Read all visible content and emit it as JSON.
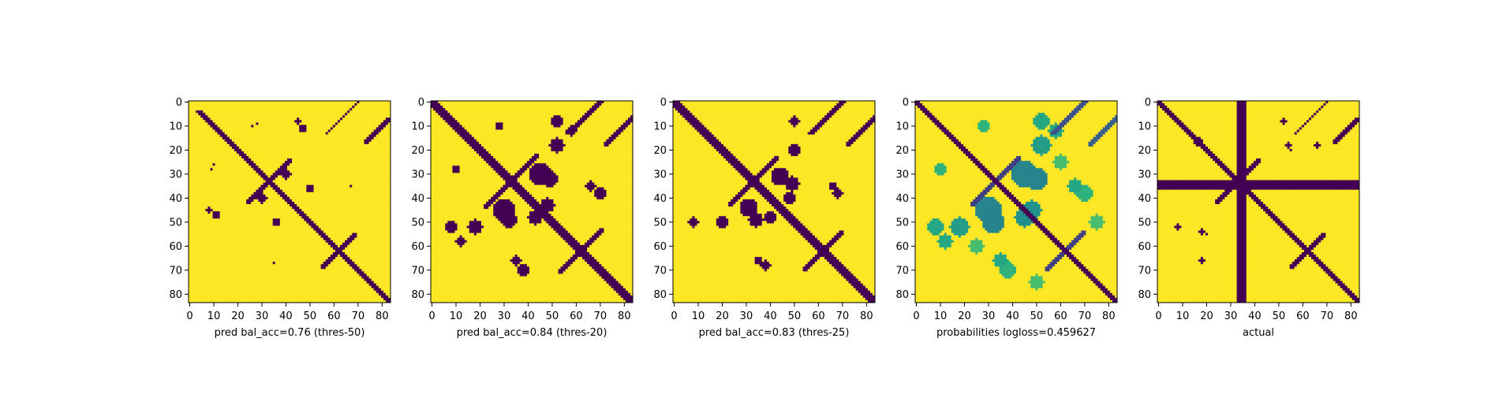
{
  "colors": {
    "low": "#440154",
    "high": "#fde725",
    "background": "#ffffff"
  },
  "chart_data": [
    {
      "type": "heatmap",
      "label": "pred bal_acc=0.76 (thres-50)",
      "matrix_size": 84,
      "xticks": [
        0,
        10,
        20,
        30,
        40,
        50,
        60,
        70,
        80
      ],
      "yticks": [
        0,
        10,
        20,
        30,
        40,
        50,
        60,
        70,
        80
      ],
      "colormap": "viridis",
      "value_range": [
        0,
        1
      ],
      "features": [
        {
          "kind": "diagonal",
          "from": 4,
          "to": 83,
          "width": 1.6,
          "value": 0
        },
        {
          "kind": "antidiagonal",
          "center": [
            33,
            33
          ],
          "half_length": 9,
          "width": 1.2,
          "value": 0
        },
        {
          "kind": "antidiagonal",
          "center": [
            62,
            62
          ],
          "half_length": 7,
          "width": 1.2,
          "value": 0
        },
        {
          "kind": "antidiagonal",
          "center": [
            12,
            78
          ],
          "half_length": 5,
          "width": 1.0,
          "value": 0
        },
        {
          "kind": "offset_diagonal",
          "offset": 70,
          "from": 0,
          "to": 13,
          "width": 0.8,
          "value": 0
        },
        {
          "kind": "blob",
          "center": [
            40,
            30
          ],
          "radius": 2.0,
          "value": 0
        },
        {
          "kind": "blob",
          "center": [
            47,
            11
          ],
          "radius": 1.5,
          "value": 0
        },
        {
          "kind": "blob",
          "center": [
            50,
            36
          ],
          "radius": 1.5,
          "value": 0
        },
        {
          "kind": "blob",
          "center": [
            8,
            45
          ],
          "radius": 1.0,
          "value": 0
        },
        {
          "kind": "blob",
          "center": [
            9,
            28
          ],
          "radius": 0.8,
          "value": 0
        },
        {
          "kind": "blob",
          "center": [
            26,
            10
          ],
          "radius": 0.8,
          "value": 0
        },
        {
          "kind": "blob",
          "center": [
            67,
            35
          ],
          "radius": 0.8,
          "value": 0
        }
      ]
    },
    {
      "type": "heatmap",
      "label": "pred bal_acc=0.84 (thres-20)",
      "matrix_size": 84,
      "xticks": [
        0,
        10,
        20,
        30,
        40,
        50,
        60,
        70,
        80
      ],
      "yticks": [
        0,
        10,
        20,
        30,
        40,
        50,
        60,
        70,
        80
      ],
      "colormap": "viridis",
      "value_range": [
        0,
        1
      ],
      "features": [
        {
          "kind": "diagonal",
          "from": 0,
          "to": 83,
          "width": 2.2,
          "value": 0
        },
        {
          "kind": "antidiagonal",
          "center": [
            33,
            33
          ],
          "half_length": 11,
          "width": 1.8,
          "value": 0
        },
        {
          "kind": "antidiagonal",
          "center": [
            62,
            62
          ],
          "half_length": 9,
          "width": 1.8,
          "value": 0
        },
        {
          "kind": "antidiagonal",
          "center": [
            12,
            78
          ],
          "half_length": 6,
          "width": 1.5,
          "value": 0
        },
        {
          "kind": "offset_diagonal",
          "offset": 70,
          "from": 0,
          "to": 13,
          "width": 1.2,
          "value": 0
        },
        {
          "kind": "blob",
          "center": [
            45,
            30
          ],
          "radius": 4.5,
          "value": 0
        },
        {
          "kind": "blob",
          "center": [
            32,
            49
          ],
          "radius": 3.5,
          "value": 0
        },
        {
          "kind": "blob",
          "center": [
            48,
            43
          ],
          "radius": 3.0,
          "value": 0
        },
        {
          "kind": "blob",
          "center": [
            52,
            18
          ],
          "radius": 3.0,
          "value": 0
        },
        {
          "kind": "blob",
          "center": [
            8,
            52
          ],
          "radius": 2.5,
          "value": 0
        },
        {
          "kind": "blob",
          "center": [
            38,
            70
          ],
          "radius": 2.5,
          "value": 0
        },
        {
          "kind": "blob",
          "center": [
            58,
            12
          ],
          "radius": 2.0,
          "value": 0
        },
        {
          "kind": "blob",
          "center": [
            66,
            35
          ],
          "radius": 2.0,
          "value": 0
        },
        {
          "kind": "blob",
          "center": [
            10,
            28
          ],
          "radius": 1.5,
          "value": 0
        }
      ]
    },
    {
      "type": "heatmap",
      "label": "pred bal_acc=0.83 (thres-25)",
      "matrix_size": 84,
      "xticks": [
        0,
        10,
        20,
        30,
        40,
        50,
        60,
        70,
        80
      ],
      "yticks": [
        0,
        10,
        20,
        30,
        40,
        50,
        60,
        70,
        80
      ],
      "colormap": "viridis",
      "value_range": [
        0,
        1
      ],
      "features": [
        {
          "kind": "diagonal",
          "from": 0,
          "to": 83,
          "width": 2.0,
          "value": 0
        },
        {
          "kind": "antidiagonal",
          "center": [
            33,
            33
          ],
          "half_length": 10,
          "width": 1.6,
          "value": 0
        },
        {
          "kind": "antidiagonal",
          "center": [
            62,
            62
          ],
          "half_length": 8,
          "width": 1.6,
          "value": 0
        },
        {
          "kind": "antidiagonal",
          "center": [
            12,
            78
          ],
          "half_length": 6,
          "width": 1.3,
          "value": 0
        },
        {
          "kind": "offset_diagonal",
          "offset": 70,
          "from": 0,
          "to": 13,
          "width": 1.0,
          "value": 0
        },
        {
          "kind": "blob",
          "center": [
            44,
            31
          ],
          "radius": 3.8,
          "value": 0
        },
        {
          "kind": "blob",
          "center": [
            34,
            49
          ],
          "radius": 3.0,
          "value": 0
        },
        {
          "kind": "blob",
          "center": [
            48,
            40
          ],
          "radius": 2.5,
          "value": 0
        },
        {
          "kind": "blob",
          "center": [
            50,
            20
          ],
          "radius": 2.5,
          "value": 0
        },
        {
          "kind": "blob",
          "center": [
            8,
            50
          ],
          "radius": 2.0,
          "value": 0
        },
        {
          "kind": "blob",
          "center": [
            38,
            68
          ],
          "radius": 2.0,
          "value": 0
        },
        {
          "kind": "blob",
          "center": [
            66,
            35
          ],
          "radius": 1.5,
          "value": 0
        }
      ]
    },
    {
      "type": "heatmap",
      "label": "probabilities logloss=0.459627",
      "matrix_size": 84,
      "xticks": [
        0,
        10,
        20,
        30,
        40,
        50,
        60,
        70,
        80
      ],
      "yticks": [
        0,
        10,
        20,
        30,
        40,
        50,
        60,
        70,
        80
      ],
      "colormap": "viridis",
      "value_range": [
        0,
        1
      ],
      "features": [
        {
          "kind": "diagonal",
          "from": 0,
          "to": 83,
          "width": 1.8,
          "value": 0.0
        },
        {
          "kind": "antidiagonal",
          "center": [
            33,
            33
          ],
          "half_length": 10,
          "width": 1.8,
          "value": 0.2
        },
        {
          "kind": "antidiagonal",
          "center": [
            62,
            62
          ],
          "half_length": 8,
          "width": 1.8,
          "value": 0.2
        },
        {
          "kind": "antidiagonal",
          "center": [
            12,
            78
          ],
          "half_length": 6,
          "width": 1.3,
          "value": 0.3
        },
        {
          "kind": "offset_diagonal",
          "offset": 70,
          "from": 0,
          "to": 13,
          "width": 1.2,
          "value": 0.25
        },
        {
          "kind": "blob",
          "center": [
            45,
            30
          ],
          "radius": 5.5,
          "value": 0.45
        },
        {
          "kind": "blob",
          "center": [
            32,
            50
          ],
          "radius": 4.5,
          "value": 0.45
        },
        {
          "kind": "blob",
          "center": [
            48,
            45
          ],
          "radius": 4.0,
          "value": 0.5
        },
        {
          "kind": "blob",
          "center": [
            52,
            18
          ],
          "radius": 4.0,
          "value": 0.55
        },
        {
          "kind": "blob",
          "center": [
            8,
            52
          ],
          "radius": 3.5,
          "value": 0.6
        },
        {
          "kind": "blob",
          "center": [
            38,
            70
          ],
          "radius": 3.5,
          "value": 0.65
        },
        {
          "kind": "blob",
          "center": [
            58,
            12
          ],
          "radius": 3.0,
          "value": 0.6
        },
        {
          "kind": "blob",
          "center": [
            66,
            35
          ],
          "radius": 3.0,
          "value": 0.6
        },
        {
          "kind": "blob",
          "center": [
            10,
            28
          ],
          "radius": 2.5,
          "value": 0.65
        },
        {
          "kind": "blob",
          "center": [
            75,
            50
          ],
          "radius": 3.0,
          "value": 0.7
        },
        {
          "kind": "blob",
          "center": [
            25,
            60
          ],
          "radius": 3.0,
          "value": 0.7
        }
      ]
    },
    {
      "type": "heatmap",
      "label": "actual",
      "matrix_size": 84,
      "xticks": [
        0,
        10,
        20,
        30,
        40,
        50,
        60,
        70,
        80
      ],
      "yticks": [
        0,
        10,
        20,
        30,
        40,
        50,
        60,
        70,
        80
      ],
      "colormap": "viridis",
      "value_range": [
        0,
        1
      ],
      "features": [
        {
          "kind": "diagonal",
          "from": 0,
          "to": 83,
          "width": 1.5,
          "value": 0
        },
        {
          "kind": "row_band",
          "from": 33,
          "to": 36,
          "value": 0
        },
        {
          "kind": "col_band",
          "from": 33,
          "to": 36,
          "value": 0
        },
        {
          "kind": "antidiagonal",
          "center": [
            33,
            33
          ],
          "half_length": 9,
          "width": 1.2,
          "value": 0
        },
        {
          "kind": "antidiagonal",
          "center": [
            62,
            62
          ],
          "half_length": 7,
          "width": 1.2,
          "value": 0
        },
        {
          "kind": "antidiagonal",
          "center": [
            12,
            78
          ],
          "half_length": 5,
          "width": 1.0,
          "value": 0
        },
        {
          "kind": "offset_diagonal",
          "offset": 70,
          "from": 0,
          "to": 13,
          "width": 0.8,
          "value": 0
        },
        {
          "kind": "blob",
          "center": [
            16,
            17
          ],
          "radius": 1.2,
          "value": 0
        },
        {
          "kind": "blob",
          "center": [
            66,
            18
          ],
          "radius": 1.2,
          "value": 0
        },
        {
          "kind": "blob",
          "center": [
            54,
            18
          ],
          "radius": 1.0,
          "value": 0
        },
        {
          "kind": "blob",
          "center": [
            8,
            52
          ],
          "radius": 1.0,
          "value": 0
        },
        {
          "kind": "blob",
          "center": [
            20,
            55
          ],
          "radius": 0.8,
          "value": 0
        }
      ]
    }
  ]
}
